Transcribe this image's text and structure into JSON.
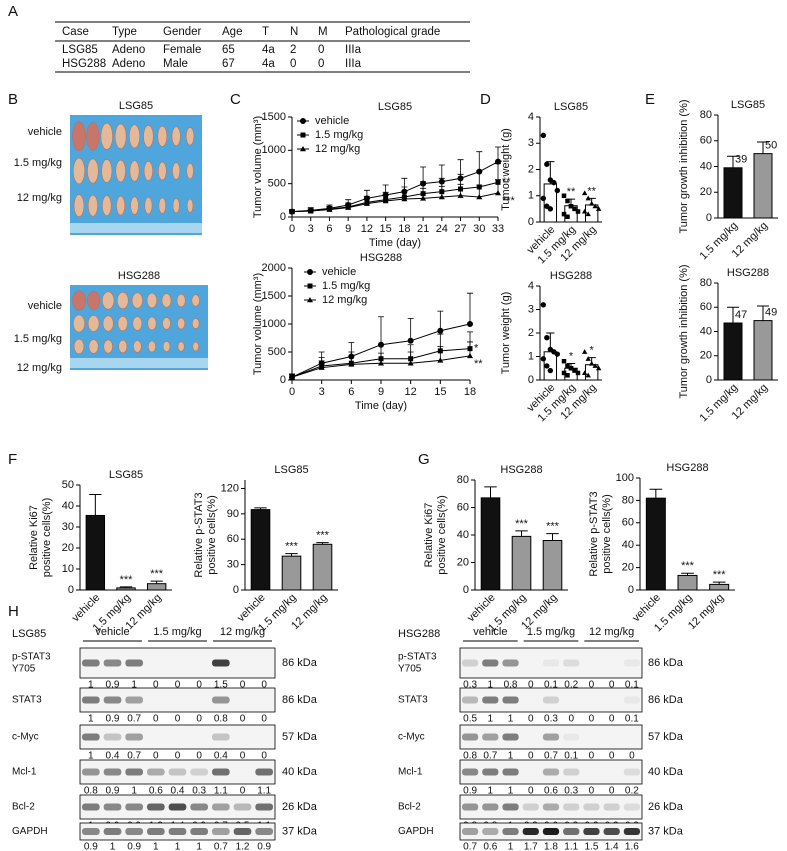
{
  "panel_labels": [
    "A",
    "B",
    "C",
    "D",
    "E",
    "F",
    "G",
    "H"
  ],
  "table": {
    "header": [
      "Case",
      "Type",
      "Gender",
      "Age",
      "T",
      "N",
      "M",
      "Pathological grade"
    ],
    "rows": [
      [
        "LSG85",
        "Adeno",
        "Female",
        "65",
        "4a",
        "2",
        "0",
        "IIIa"
      ],
      [
        "HSG288",
        "Adeno",
        "Male",
        "67",
        "4a",
        "0",
        "0",
        "IIIa"
      ]
    ]
  },
  "photos": [
    {
      "title": "LSG85",
      "rows": [
        "vehicle",
        "1.5 mg/kg",
        "12 mg/kg"
      ]
    },
    {
      "title": "HSG288",
      "rows": [
        "vehicle",
        "1.5 mg/kg",
        "12 mg/kg"
      ]
    }
  ],
  "chart_data": [
    {
      "type": "line",
      "title": "LSG85",
      "x_label": "Time (day)",
      "y_label": [
        "Tumor volume (mm³)"
      ],
      "x": [
        0,
        3,
        6,
        9,
        12,
        15,
        18,
        21,
        24,
        27,
        30,
        33
      ],
      "xlim": [
        0,
        33
      ],
      "xticks": [
        0,
        3,
        6,
        9,
        12,
        15,
        18,
        21,
        24,
        27,
        30,
        33
      ],
      "ylim": [
        0,
        1500
      ],
      "yticks": [
        0,
        500,
        1000,
        1500
      ],
      "series": [
        {
          "name": "vehicle",
          "color": "#000000",
          "marker": "circle",
          "values": [
            80,
            100,
            130,
            180,
            280,
            330,
            380,
            500,
            530,
            580,
            680,
            830
          ],
          "errors": [
            30,
            40,
            50,
            80,
            120,
            150,
            200,
            250,
            250,
            280,
            300,
            220
          ]
        },
        {
          "name": "1.5 mg/kg",
          "color": "#000000",
          "marker": "square",
          "values": [
            80,
            90,
            120,
            150,
            220,
            260,
            300,
            350,
            380,
            420,
            450,
            520
          ],
          "errors": [
            20,
            30,
            40,
            60,
            90,
            110,
            150,
            180,
            200,
            220,
            240,
            280
          ],
          "significance": "**"
        },
        {
          "name": "12 mg/kg",
          "color": "#000000",
          "marker": "triangle",
          "values": [
            80,
            90,
            110,
            140,
            200,
            240,
            270,
            280,
            300,
            320,
            300,
            360
          ],
          "errors": [
            20,
            30,
            40,
            50,
            80,
            100,
            120,
            150,
            160,
            170,
            180,
            200
          ],
          "significance": "***"
        }
      ]
    },
    {
      "type": "line",
      "title": "HSG288",
      "x_label": "Time (day)",
      "y_label": [
        "Tumor volume (mm³)"
      ],
      "x": [
        0,
        3,
        6,
        9,
        12,
        15,
        18
      ],
      "xlim": [
        0,
        18
      ],
      "xticks": [
        0,
        3,
        6,
        9,
        12,
        15,
        18
      ],
      "ylim": [
        0,
        2000
      ],
      "yticks": [
        0,
        500,
        1000,
        1500,
        2000
      ],
      "series": [
        {
          "name": "vehicle",
          "color": "#000000",
          "marker": "circle",
          "values": [
            50,
            300,
            420,
            630,
            700,
            880,
            1000
          ],
          "errors": [
            60,
            200,
            250,
            500,
            400,
            350,
            550
          ]
        },
        {
          "name": "1.5 mg/kg",
          "color": "#000000",
          "marker": "square",
          "values": [
            50,
            250,
            300,
            380,
            380,
            520,
            560
          ],
          "errors": [
            50,
            150,
            200,
            250,
            250,
            300,
            300
          ],
          "significance": "*"
        },
        {
          "name": "12 mg/kg",
          "color": "#000000",
          "marker": "triangle",
          "values": [
            50,
            220,
            280,
            300,
            300,
            350,
            430
          ],
          "errors": [
            40,
            120,
            150,
            180,
            200,
            250,
            250
          ],
          "significance": "**"
        }
      ]
    },
    {
      "type": "bar",
      "title": "LSG85",
      "y_label": [
        "Tumor weight (g)"
      ],
      "categories": [
        "vehicle",
        "1.5 mg/kg",
        "12 mg/kg"
      ],
      "values": [
        1.45,
        0.62,
        0.65
      ],
      "errors": [
        0.85,
        0.25,
        0.25
      ],
      "colors": [
        "#ffffff",
        "#ffffff",
        "#ffffff"
      ],
      "ylim": [
        0,
        4
      ],
      "yticks": [
        0,
        1,
        2,
        3,
        4
      ],
      "significance": [
        null,
        "**",
        "**"
      ],
      "markers": [
        "circle",
        "square",
        "triangle"
      ],
      "points": [
        [
          3.3,
          2.2,
          1.6,
          1.5,
          1.2,
          0.9,
          0.6,
          0.5
        ],
        [
          1.0,
          0.8,
          0.6,
          0.5,
          0.4,
          0.3,
          0.2,
          0.6
        ],
        [
          1.1,
          0.9,
          0.7,
          0.6,
          0.5,
          0.4,
          0.3
        ]
      ]
    },
    {
      "type": "bar",
      "title": "HSG288",
      "y_label": [
        "Tumor weight (g)"
      ],
      "categories": [
        "vehicle",
        "1.5 mg/kg",
        "12 mg/kg"
      ],
      "values": [
        1.2,
        0.5,
        0.65
      ],
      "errors": [
        0.8,
        0.2,
        0.3
      ],
      "colors": [
        "#ffffff",
        "#ffffff",
        "#ffffff"
      ],
      "ylim": [
        0,
        4
      ],
      "yticks": [
        0,
        1,
        2,
        3,
        4
      ],
      "significance": [
        null,
        "*",
        "*"
      ],
      "markers": [
        "circle",
        "square",
        "triangle"
      ],
      "points": [
        [
          3.2,
          1.8,
          1.3,
          1.2,
          1.1,
          0.9,
          0.6,
          0.4
        ],
        [
          0.8,
          0.6,
          0.5,
          0.4,
          0.3,
          0.3,
          0.2,
          0.5
        ],
        [
          1.2,
          0.9,
          0.7,
          0.6,
          0.5,
          0.3,
          0.2
        ]
      ]
    },
    {
      "type": "bar",
      "title": "LSG85",
      "y_label": [
        "Tumor growth inhibition (%)"
      ],
      "categories": [
        "1.5 mg/kg",
        "12 mg/kg"
      ],
      "values": [
        39,
        50
      ],
      "errors": [
        9,
        9
      ],
      "colors": [
        "#111111",
        "#999999"
      ],
      "ylim": [
        0,
        80
      ],
      "yticks": [
        0,
        20,
        40,
        60,
        80
      ],
      "show_values": true
    },
    {
      "type": "bar",
      "title": "HSG288",
      "y_label": [
        "Tumor growth inhibition (%)"
      ],
      "categories": [
        "1.5 mg/kg",
        "12 mg/kg"
      ],
      "values": [
        47,
        49
      ],
      "errors": [
        13,
        12
      ],
      "colors": [
        "#111111",
        "#999999"
      ],
      "ylim": [
        0,
        80
      ],
      "yticks": [
        0,
        20,
        40,
        60,
        80
      ],
      "show_values": true
    },
    {
      "type": "bar",
      "title": "LSG85",
      "y_label": [
        "Relative Ki67",
        "positive cells(%)"
      ],
      "categories": [
        "vehicle",
        "1.5 mg/kg",
        "12 mg/kg"
      ],
      "values": [
        35.5,
        1,
        3
      ],
      "errors": [
        10,
        0.5,
        1.2
      ],
      "colors": [
        "#111111",
        "#999999",
        "#999999"
      ],
      "ylim": [
        0,
        50
      ],
      "yticks": [
        0,
        10,
        20,
        30,
        40,
        50
      ],
      "significance": [
        null,
        "***",
        "***"
      ]
    },
    {
      "type": "bar",
      "title": "LSG85",
      "y_label": [
        "Relative p-STAT3",
        "positive cells(%)"
      ],
      "categories": [
        "vehicle",
        "1.5 mg/kg",
        "12 mg/kg"
      ],
      "values": [
        95,
        40,
        54
      ],
      "errors": [
        2,
        3,
        2
      ],
      "colors": [
        "#111111",
        "#999999",
        "#999999"
      ],
      "ylim": [
        0,
        130
      ],
      "yticks": [
        0,
        30,
        60,
        90,
        120
      ],
      "significance": [
        null,
        "***",
        "***"
      ]
    },
    {
      "type": "bar",
      "title": "HSG288",
      "y_label": [
        "Relative Ki67",
        "positive cells(%)"
      ],
      "categories": [
        "vehicle",
        "1.5 mg/kg",
        "12 mg/kg"
      ],
      "values": [
        67,
        39,
        36
      ],
      "errors": [
        8,
        4,
        5
      ],
      "colors": [
        "#111111",
        "#999999",
        "#999999"
      ],
      "ylim": [
        0,
        80
      ],
      "yticks": [
        0,
        20,
        40,
        60,
        80
      ],
      "significance": [
        null,
        "***",
        "***"
      ]
    },
    {
      "type": "bar",
      "title": "HSG288",
      "y_label": [
        "Relative p-STAT3",
        "positive cells(%)"
      ],
      "categories": [
        "vehicle",
        "1.5 mg/kg",
        "12 mg/kg"
      ],
      "values": [
        82,
        13,
        5
      ],
      "errors": [
        8,
        2,
        2
      ],
      "colors": [
        "#111111",
        "#999999",
        "#999999"
      ],
      "ylim": [
        0,
        100
      ],
      "yticks": [
        0,
        20,
        40,
        60,
        80,
        100
      ],
      "significance": [
        null,
        "***",
        "***"
      ]
    }
  ],
  "blots": [
    {
      "title": "LSG85",
      "groups": [
        "vehicle",
        "1.5 mg/kg",
        "12 mg/kg"
      ],
      "rows": [
        {
          "label": [
            "p-STAT3",
            "Y705"
          ],
          "size": "86 kDa",
          "values": [
            1,
            0.9,
            1,
            0,
            0,
            0,
            1.5,
            0,
            0
          ]
        },
        {
          "label": [
            "STAT3"
          ],
          "size": "86 kDa",
          "values": [
            1,
            0.9,
            0.7,
            0,
            0,
            0,
            0.8,
            0,
            0
          ]
        },
        {
          "label": [
            "c-Myc"
          ],
          "size": "57 kDa",
          "values": [
            1,
            0.4,
            0.7,
            0,
            0,
            0,
            0.4,
            0,
            0
          ]
        },
        {
          "label": [
            "Mcl-1"
          ],
          "size": "40 kDa",
          "values": [
            0.8,
            0.9,
            1,
            0.6,
            0.4,
            0.3,
            1.1,
            0,
            1.1
          ]
        },
        {
          "label": [
            "Bcl-2"
          ],
          "size": "26 kDa",
          "values": [
            1,
            0.9,
            0.9,
            1.2,
            1.4,
            0.9,
            0.7,
            0.5,
            1.1
          ]
        },
        {
          "label": [
            "GAPDH"
          ],
          "size": "37 kDa",
          "values": [
            0.9,
            1,
            0.9,
            1,
            1,
            1,
            0.7,
            1.2,
            0.9
          ]
        }
      ]
    },
    {
      "title": "HSG288",
      "groups": [
        "vehicle",
        "1.5 mg/kg",
        "12 mg/kg"
      ],
      "rows": [
        {
          "label": [
            "p-STAT3",
            "Y705"
          ],
          "size": "86 kDa",
          "values": [
            0.3,
            1,
            0.8,
            0,
            0.1,
            0.2,
            0,
            0,
            0.1
          ]
        },
        {
          "label": [
            "STAT3"
          ],
          "size": "86 kDa",
          "values": [
            0.5,
            1,
            1,
            0,
            0.3,
            0,
            0,
            0,
            0.1
          ]
        },
        {
          "label": [
            "c-Myc"
          ],
          "size": "57 kDa",
          "values": [
            0.8,
            0.7,
            1,
            0,
            0.7,
            0.1,
            0,
            0,
            0
          ]
        },
        {
          "label": [
            "Mcl-1"
          ],
          "size": "40 kDa",
          "values": [
            0.9,
            1,
            1,
            0,
            0.6,
            0.3,
            0,
            0,
            0.2
          ]
        },
        {
          "label": [
            "Bcl-2"
          ],
          "size": "26 kDa",
          "values": [
            0.8,
            0.8,
            1,
            0.3,
            0.6,
            0.3,
            0.3,
            0.3,
            0.2
          ]
        },
        {
          "label": [
            "GAPDH"
          ],
          "size": "37 kDa",
          "values": [
            0.7,
            0.6,
            1,
            1.7,
            1.8,
            1.1,
            1.5,
            1.4,
            1.6
          ]
        }
      ]
    }
  ]
}
